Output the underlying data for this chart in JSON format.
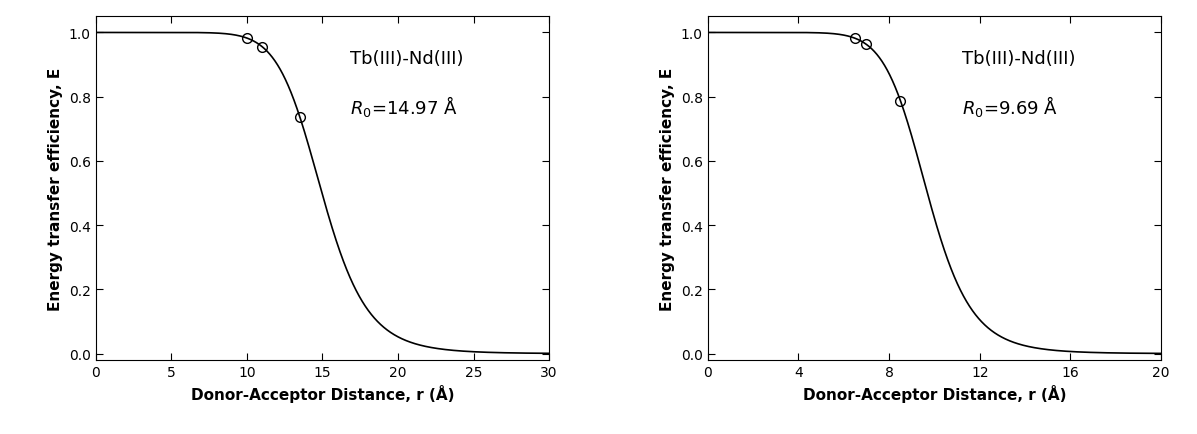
{
  "plots": [
    {
      "R0": 14.97,
      "xmin": 0,
      "xmax": 30,
      "xticks": [
        0,
        5,
        10,
        15,
        20,
        25,
        30
      ],
      "label": "Tb(III)-Nd(III)",
      "R0_display": "14.97",
      "circle_r": [
        10.0,
        11.0,
        13.5
      ],
      "power": 10
    },
    {
      "R0": 9.69,
      "xmin": 0,
      "xmax": 20,
      "xticks": [
        0,
        4,
        8,
        12,
        16,
        20
      ],
      "label": "Tb(III)-Nd(III)",
      "R0_display": "9.69",
      "circle_r": [
        6.5,
        7.0,
        8.5
      ],
      "power": 10
    }
  ],
  "ylabel": "Energy transfer efficiency, E",
  "xlabel": "Donor-Acceptor Distance, r (Å)",
  "ymin": -0.02,
  "ymax": 1.05,
  "yticks": [
    0.0,
    0.2,
    0.4,
    0.6,
    0.8,
    1.0
  ],
  "line_color": "#000000",
  "background_color": "#ffffff",
  "label_fontsize": 11,
  "tick_fontsize": 10,
  "annotation_fontsize": 13
}
